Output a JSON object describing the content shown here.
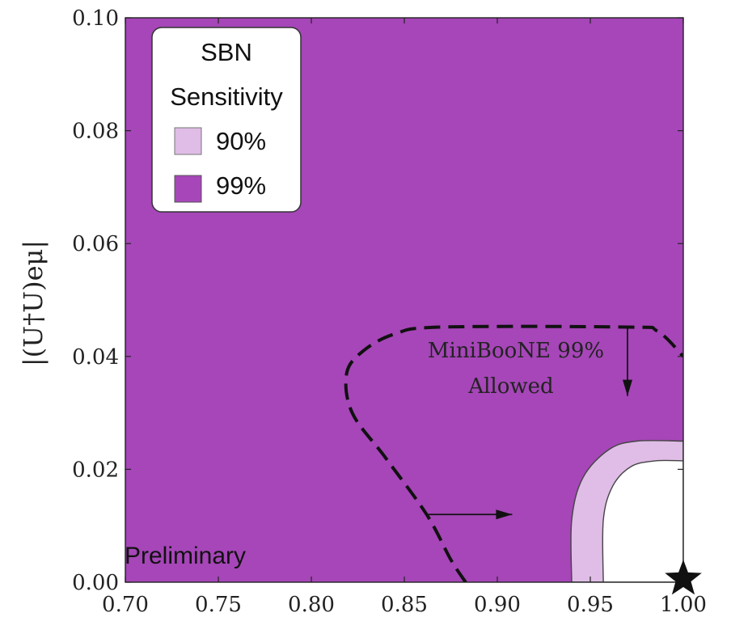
{
  "chart_data": {
    "type": "area",
    "xlabel": "",
    "ylabel": "|(U†U)eμ|",
    "xlim": [
      0.7,
      1.0
    ],
    "ylim": [
      0.0,
      0.1
    ],
    "x_ticks": [
      "0.70",
      "0.75",
      "0.80",
      "0.85",
      "0.90",
      "0.95",
      "1.00"
    ],
    "y_ticks": [
      "0.00",
      "0.02",
      "0.04",
      "0.06",
      "0.08",
      "0.10"
    ],
    "legend": {
      "title_line1": "SBN",
      "title_line2": "Sensitivity",
      "position": "top-left",
      "entries": [
        {
          "label": "90%",
          "color": "#dfbde6"
        },
        {
          "label": "99%",
          "color": "#a646b8"
        }
      ]
    },
    "colors": {
      "region_99": "#a646b8",
      "region_90": "#dfbde6",
      "allowed": "#ffffff"
    },
    "series": [
      {
        "name": "99%",
        "boundary": [
          [
            0.94,
            0.0
          ],
          [
            0.94,
            0.011
          ],
          [
            0.946,
            0.0185
          ],
          [
            0.96,
            0.0235
          ],
          [
            0.975,
            0.025
          ],
          [
            1.0,
            0.025
          ]
        ]
      },
      {
        "name": "90%",
        "boundary": [
          [
            0.957,
            0.0
          ],
          [
            0.957,
            0.011
          ],
          [
            0.962,
            0.017
          ],
          [
            0.972,
            0.0205
          ],
          [
            0.985,
            0.0215
          ],
          [
            1.0,
            0.0215
          ]
        ]
      },
      {
        "contour": "MiniBooNE 99% Allowed",
        "style": "dashed",
        "boundary": [
          [
            0.883,
            0.0
          ],
          [
            0.875,
            0.004
          ],
          [
            0.862,
            0.012
          ],
          [
            0.84,
            0.022
          ],
          [
            0.822,
            0.03
          ],
          [
            0.819,
            0.037
          ],
          [
            0.828,
            0.041
          ],
          [
            0.845,
            0.044
          ],
          [
            0.87,
            0.0452
          ],
          [
            0.97,
            0.0452
          ],
          [
            0.986,
            0.0445
          ],
          [
            1.0,
            0.04
          ]
        ]
      }
    ],
    "annotations": {
      "miniboone_line1": "MiniBooNE 99%",
      "miniboone_line2": "Allowed",
      "preliminary": "Preliminary",
      "arrows": [
        {
          "from": [
            0.97,
            0.0452
          ],
          "to": [
            0.97,
            0.033
          ]
        },
        {
          "from": [
            0.863,
            0.012
          ],
          "to": [
            0.908,
            0.012
          ]
        }
      ],
      "star": {
        "x": 1.0,
        "y": 0.0
      }
    }
  }
}
